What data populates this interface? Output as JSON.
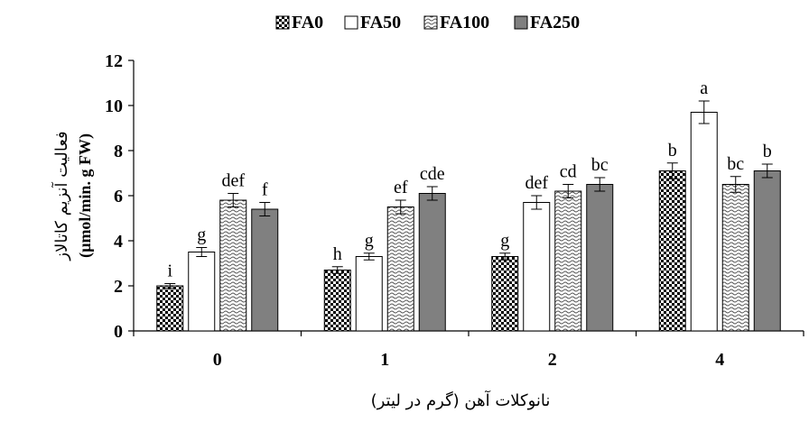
{
  "chart_data": {
    "type": "bar",
    "categories": [
      "0",
      "1",
      "2",
      "4"
    ],
    "series": [
      {
        "name": "FA0",
        "values": [
          2.0,
          2.7,
          3.3,
          7.1
        ],
        "errors": [
          0.1,
          0.15,
          0.15,
          0.35
        ],
        "letters": [
          "i",
          "h",
          "g",
          "b"
        ],
        "style": "checker"
      },
      {
        "name": "FA50",
        "values": [
          3.5,
          3.3,
          5.7,
          9.7
        ],
        "errors": [
          0.2,
          0.15,
          0.3,
          0.5
        ],
        "letters": [
          "g",
          "g",
          "def",
          "a"
        ],
        "style": "white"
      },
      {
        "name": "FA100",
        "values": [
          5.8,
          5.5,
          6.2,
          6.5
        ],
        "errors": [
          0.3,
          0.3,
          0.3,
          0.35
        ],
        "letters": [
          "def",
          "ef",
          "cd",
          "bc"
        ],
        "style": "wave"
      },
      {
        "name": "FA250",
        "values": [
          5.4,
          6.1,
          6.5,
          7.1
        ],
        "errors": [
          0.3,
          0.3,
          0.3,
          0.3
        ],
        "letters": [
          "f",
          "cde",
          "bc",
          "b"
        ],
        "style": "gray"
      }
    ],
    "ylim": [
      0,
      12
    ],
    "yticks": [
      0,
      2,
      4,
      6,
      8,
      10,
      12
    ],
    "ylabel_line1": "فعالیت آنزیم کاتالاز",
    "ylabel_line2": "(µmol/min. g FW)",
    "xlabel": "نانوکلات آهن (گرم در لیتر)",
    "legend_position": "top",
    "grid": false,
    "colors": {
      "gray": "#808080",
      "checker": "#000000",
      "wave": "#666666"
    }
  }
}
